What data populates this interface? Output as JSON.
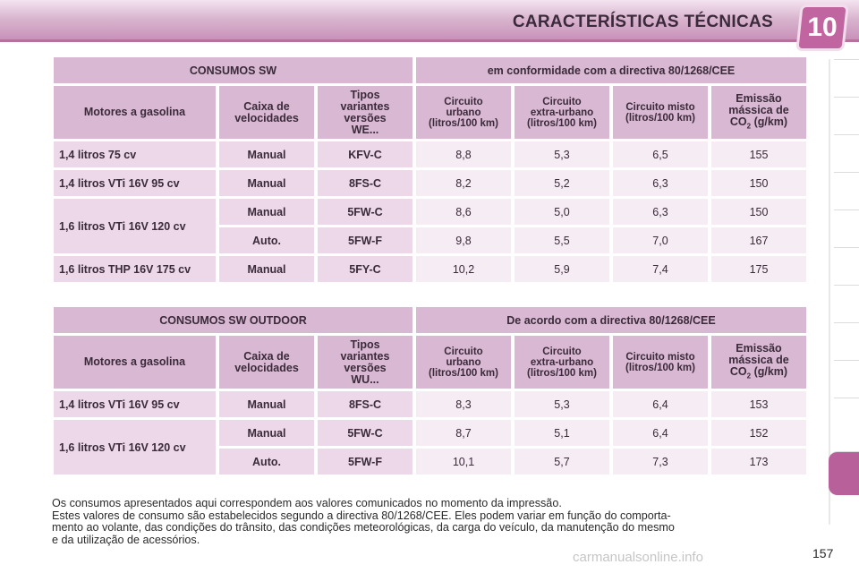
{
  "header": {
    "title": "CARACTERÍSTICAS TÉCNICAS",
    "chapter_number": "10",
    "accent_color": "#c0659f"
  },
  "table1": {
    "header_left": "CONSUMOS SW",
    "header_right": "em conformidade com a directiva 80/1268/CEE",
    "columns": {
      "engine": "Motores a gasolina",
      "gearbox": [
        "Caixa de",
        "velocidades"
      ],
      "variant": [
        "Tipos",
        "variantes",
        "versões",
        "WE..."
      ],
      "urban": [
        "Circuito",
        "urbano",
        "(litros/100 km)"
      ],
      "extra_urban": [
        "Circuito",
        "extra-urbano",
        "(litros/100 km)"
      ],
      "mixed": [
        "Circuito misto",
        "(litros/100 km)"
      ],
      "co2": [
        "Emissão",
        "mássica de",
        "CO",
        "2",
        " (g/km)"
      ]
    },
    "engines": [
      "1,4 litros 75 cv",
      "1,4 litros VTi 16V 95 cv",
      "1,6 litros VTi 16V 120 cv",
      "1,6 litros THP 16V 175 cv"
    ],
    "rows": [
      {
        "gearbox": "Manual",
        "variant": "KFV-C",
        "urban": "8,8",
        "extra_urban": "5,3",
        "mixed": "6,5",
        "co2": "155"
      },
      {
        "gearbox": "Manual",
        "variant": "8FS-C",
        "urban": "8,2",
        "extra_urban": "5,2",
        "mixed": "6,3",
        "co2": "150"
      },
      {
        "gearbox": "Manual",
        "variant": "5FW-C",
        "urban": "8,6",
        "extra_urban": "5,0",
        "mixed": "6,3",
        "co2": "150"
      },
      {
        "gearbox": "Auto.",
        "variant": "5FW-F",
        "urban": "9,8",
        "extra_urban": "5,5",
        "mixed": "7,0",
        "co2": "167"
      },
      {
        "gearbox": "Manual",
        "variant": "5FY-C",
        "urban": "10,2",
        "extra_urban": "5,9",
        "mixed": "7,4",
        "co2": "175"
      }
    ]
  },
  "table2": {
    "header_left": "CONSUMOS SW OUTDOOR",
    "header_right": "De acordo com a directiva 80/1268/CEE",
    "columns": {
      "engine": "Motores a gasolina",
      "gearbox": [
        "Caixa de",
        "velocidades"
      ],
      "variant": [
        "Tipos",
        "variantes",
        "versões",
        "WU..."
      ],
      "urban": [
        "Circuito",
        "urbano",
        "(litros/100 km)"
      ],
      "extra_urban": [
        "Circuito",
        "extra-urbano",
        "(litros/100 km)"
      ],
      "mixed": [
        "Circuito misto",
        "(litros/100 km)"
      ],
      "co2": [
        "Emissão",
        "mássica de",
        "CO",
        "2",
        " (g/km)"
      ]
    },
    "engines": [
      "1,4 litros VTi 16V 95 cv",
      "1,6 litros VTi 16V 120 cv"
    ],
    "rows": [
      {
        "gearbox": "Manual",
        "variant": "8FS-C",
        "urban": "8,3",
        "extra_urban": "5,3",
        "mixed": "6,4",
        "co2": "153"
      },
      {
        "gearbox": "Manual",
        "variant": "5FW-C",
        "urban": "8,7",
        "extra_urban": "5,1",
        "mixed": "6,4",
        "co2": "152"
      },
      {
        "gearbox": "Auto.",
        "variant": "5FW-F",
        "urban": "10,1",
        "extra_urban": "5,7",
        "mixed": "7,3",
        "co2": "173"
      }
    ]
  },
  "footer": {
    "line1": "Os consumos apresentados aqui correspondem aos valores comunicados no momento da impressão.",
    "line2": "Estes valores de consumo são estabelecidos segundo a directiva 80/1268/CEE. Eles podem variar em função do comporta-",
    "line3": "mento ao volante, das condições do trânsito, das condições meteorológicas, da carga do veículo, da manutenção do mesmo",
    "line4": "e da utilização de acessórios."
  },
  "page_number": "157",
  "watermark": "carmanualsonline.info"
}
